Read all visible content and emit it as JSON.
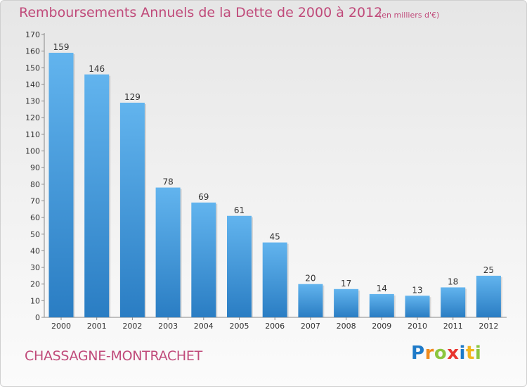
{
  "title": "Remboursements Annuels de la Dette de 2000 à 2012",
  "subtitle": "(en milliers d'€)",
  "commune": "CHASSAGNE-MONTRACHET",
  "logo": {
    "text": "Proxiti",
    "letters": [
      {
        "ch": "P",
        "color": "#1e7ac8"
      },
      {
        "ch": "r",
        "color": "#f08a1c"
      },
      {
        "ch": "o",
        "color": "#8cc63f"
      },
      {
        "ch": "x",
        "color": "#e8352e"
      },
      {
        "ch": "i",
        "color": "#1e7ac8"
      },
      {
        "ch": "t",
        "color": "#f2b51c"
      },
      {
        "ch": "i",
        "color": "#8cc63f"
      }
    ]
  },
  "colors": {
    "bar_light": "#62b4ee",
    "bar_dark": "#2a7dc3",
    "text": "#c04a7a"
  },
  "chart_data": {
    "type": "bar",
    "title": "Remboursements Annuels de la Dette de 2000 à 2012",
    "categories": [
      "2000",
      "2001",
      "2002",
      "2003",
      "2004",
      "2005",
      "2006",
      "2007",
      "2008",
      "2009",
      "2010",
      "2011",
      "2012"
    ],
    "values": [
      159,
      146,
      129,
      78,
      69,
      61,
      45,
      20,
      17,
      14,
      13,
      18,
      25
    ],
    "ylim": [
      0,
      170
    ],
    "yticks": [
      0,
      10,
      20,
      30,
      40,
      50,
      60,
      70,
      80,
      90,
      100,
      110,
      120,
      130,
      140,
      150,
      160,
      170
    ],
    "grid": false,
    "data_labels": true
  }
}
